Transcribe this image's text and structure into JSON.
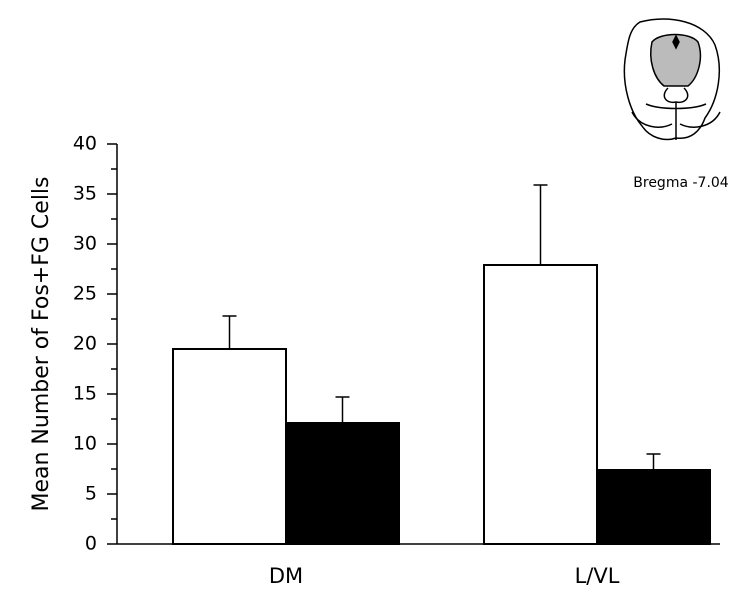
{
  "chart_data": {
    "type": "bar",
    "y_label": "Mean Number of Fos+FG Cells",
    "annotation": "Bregma -7.04",
    "categories": [
      "DM",
      "L/VL"
    ],
    "series": [
      {
        "color": "#ffffff",
        "values": [
          19.5,
          27.9
        ],
        "errors": [
          3.3,
          8.0
        ]
      },
      {
        "color": "#000000",
        "values": [
          12.1,
          7.4
        ],
        "errors": [
          2.6,
          1.6
        ]
      }
    ],
    "ylim": [
      0,
      40
    ],
    "yticks": [
      0,
      5,
      10,
      15,
      20,
      25,
      30,
      35,
      40
    ],
    "yminor_ticks": [
      2.5,
      7.5,
      12.5,
      17.5,
      22.5,
      27.5,
      32.5,
      37.5
    ]
  }
}
